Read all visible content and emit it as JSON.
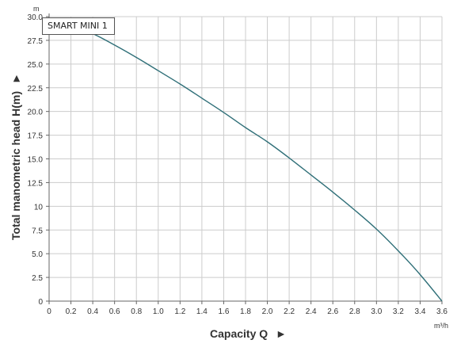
{
  "chart_data": {
    "type": "line",
    "title": "",
    "xlabel": "Capacity Q",
    "ylabel": "Total manometric head H(m)",
    "x_unit": "m³/h",
    "y_unit": "m",
    "xlim": [
      0,
      3.6
    ],
    "ylim": [
      0,
      30
    ],
    "grid": true,
    "legend_placement": "top-left",
    "x_ticks": [
      "0",
      "0.2",
      "0.4",
      "0.6",
      "0.8",
      "1.0",
      "1.2",
      "1.4",
      "1.6",
      "1.8",
      "2.0",
      "2.2",
      "2.4",
      "2.6",
      "2.8",
      "3.0",
      "3.2",
      "3.4",
      "3.6"
    ],
    "y_ticks": [
      "0",
      "2.5",
      "5.0",
      "7.5",
      "10",
      "12.5",
      "15.0",
      "17.5",
      "20.0",
      "22.5",
      "25.0",
      "27.5",
      "30.0"
    ],
    "series": [
      {
        "name": "SMART MINI 1",
        "color": "#2f6f78",
        "x": [
          0,
          0.2,
          0.4,
          0.6,
          0.8,
          1.0,
          1.2,
          1.4,
          1.6,
          1.8,
          2.0,
          2.2,
          2.4,
          2.6,
          2.8,
          3.0,
          3.2,
          3.4,
          3.6
        ],
        "y": [
          29.8,
          29.0,
          28.2,
          27.0,
          25.7,
          24.3,
          22.9,
          21.4,
          19.9,
          18.3,
          16.8,
          15.1,
          13.3,
          11.5,
          9.6,
          7.6,
          5.3,
          2.8,
          0
        ]
      }
    ]
  }
}
